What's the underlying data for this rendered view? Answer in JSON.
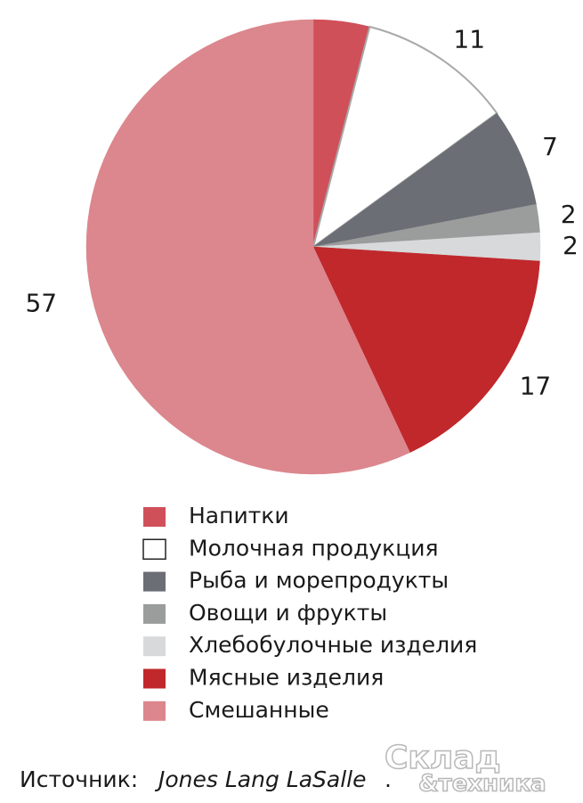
{
  "chart_data": {
    "type": "pie",
    "categories": [
      "Напитки",
      "Молочная продукция",
      "Рыба и морепродукты",
      "Овощи и фрукты",
      "Хлебобулочные изделия",
      "Мясные изделия",
      "Смешанные"
    ],
    "values": [
      4,
      11,
      7,
      2,
      2,
      17,
      57
    ],
    "value_labels": [
      null,
      "11",
      "7",
      "2",
      "2",
      "17",
      "57"
    ],
    "colors": [
      "#d0505a",
      "#ffffff",
      "#6b6e74",
      "#9a9d9c",
      "#d8d9da",
      "#c0282b",
      "#dc868d"
    ],
    "source": {
      "prefix": "Источник:",
      "name": "Jones Lang LaSalle",
      "suffix": "."
    },
    "watermark": [
      "Склад",
      "&техника"
    ]
  }
}
